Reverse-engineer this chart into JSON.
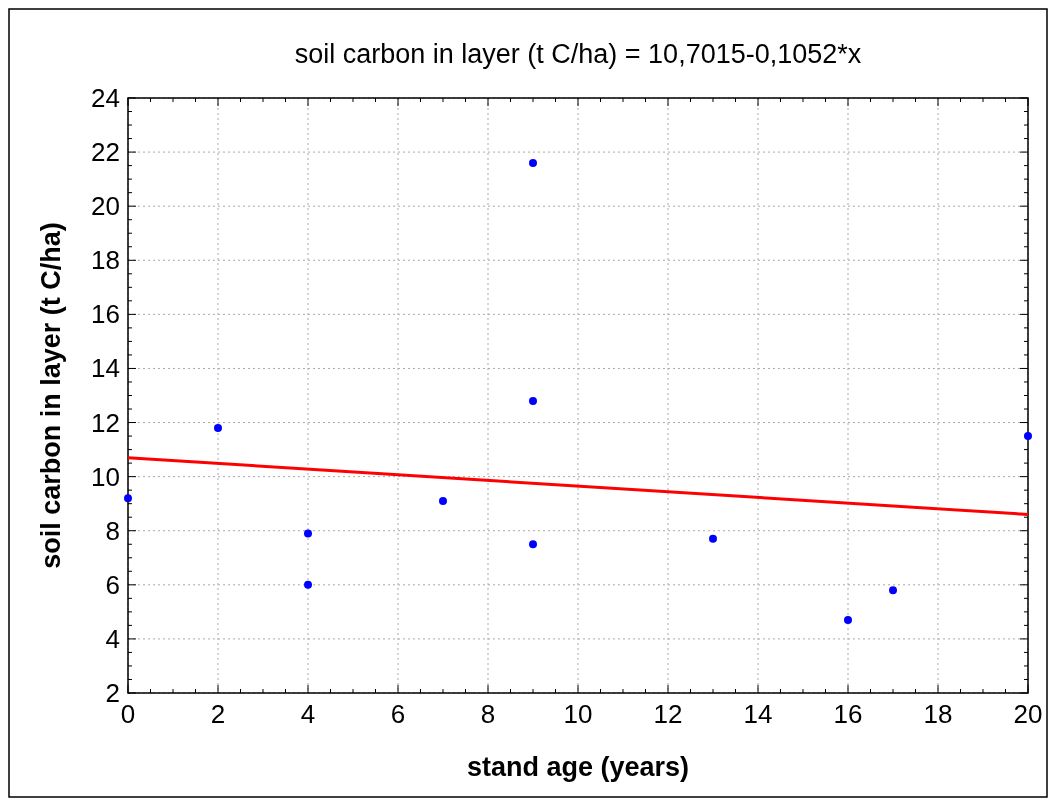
{
  "chart_data": {
    "type": "scatter",
    "title": "soil carbon in layer (t C/ha) = 10,7015-0,1052*x",
    "xlabel": "stand age (years)",
    "ylabel": "soil carbon in layer (t C/ha)",
    "xlim": [
      0,
      20
    ],
    "xticks": [
      0,
      2,
      4,
      6,
      8,
      10,
      12,
      14,
      16,
      18,
      20
    ],
    "ylim": [
      2,
      24
    ],
    "yticks": [
      2,
      4,
      6,
      8,
      10,
      12,
      14,
      16,
      18,
      20,
      22,
      24
    ],
    "grid": true,
    "series": [
      {
        "marker": "circle",
        "color": "#0000ff",
        "x": [
          0,
          2,
          4,
          4,
          7,
          9,
          9,
          9,
          13,
          16,
          17,
          20
        ],
        "values": [
          9.2,
          11.8,
          7.9,
          6.0,
          9.1,
          21.6,
          12.8,
          7.5,
          7.7,
          4.7,
          5.8,
          11.5
        ]
      },
      {
        "type": "line",
        "color": "#ff0000",
        "x": [
          0,
          20
        ],
        "values": [
          10.7,
          8.6
        ]
      }
    ]
  }
}
